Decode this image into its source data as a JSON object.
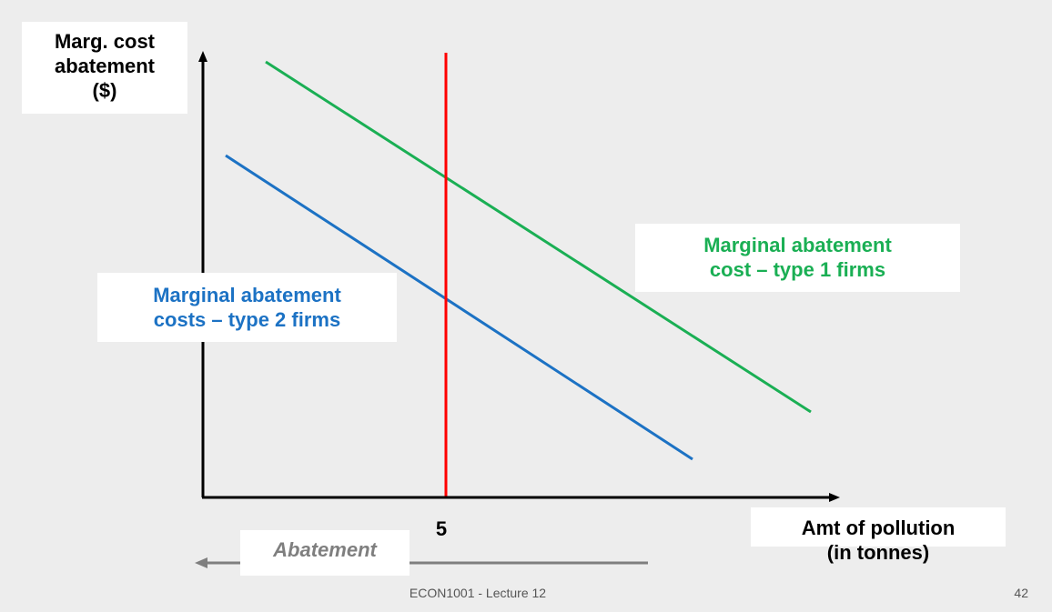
{
  "diagram": {
    "y_axis_label": [
      "Marg. cost",
      "abatement",
      "($)"
    ],
    "x_axis_label": [
      "Amt of pollution",
      "(in tonnes)"
    ],
    "x_tick": "5",
    "type1_label": [
      "Marginal abatement",
      "cost – type 1 firms"
    ],
    "type2_label": [
      "Marginal abatement",
      "costs – type 2 firms"
    ],
    "abatement_label": "Abatement",
    "colors": {
      "type1": "#1aaf54",
      "type2": "#1c72c4",
      "vertical_line": "#ff0000",
      "axes": "#000000",
      "abatement_arrow": "#7f7f7f"
    }
  },
  "footer": {
    "course": "ECON1001 - Lecture 12",
    "page": "42"
  }
}
